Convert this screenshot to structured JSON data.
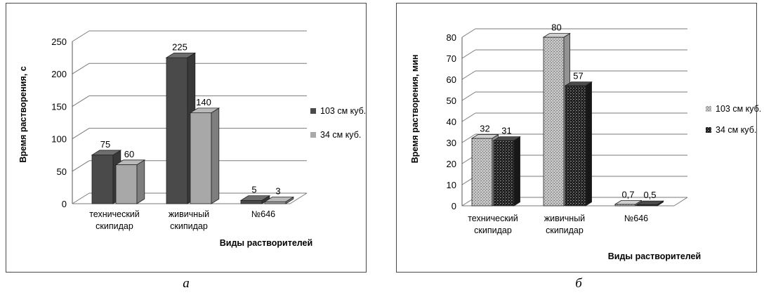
{
  "chart_data": [
    {
      "type": "bar",
      "ylabel": "Время растворения, с",
      "xlabel": "Виды растворителей",
      "ylim": [
        0,
        250
      ],
      "yticks": [
        0,
        50,
        100,
        150,
        200,
        250
      ],
      "ytick_labels": [
        "0",
        "50",
        "100",
        "150",
        "200",
        "250"
      ],
      "categories": [
        [
          "технический",
          "скипидар"
        ],
        [
          "живичный",
          "скипидар"
        ],
        [
          "№646"
        ]
      ],
      "series": [
        {
          "name": "103 см куб.",
          "values": [
            75,
            225,
            5
          ],
          "labels": [
            "75",
            "225",
            "5"
          ],
          "color": "#4a4a4a",
          "pattern": "solid"
        },
        {
          "name": "34 см куб.",
          "values": [
            60,
            140,
            3
          ],
          "labels": [
            "60",
            "140",
            "3"
          ],
          "color": "#a8a8a8",
          "pattern": "solid"
        }
      ],
      "grid": true,
      "legend": "right",
      "view3d": true
    },
    {
      "type": "bar",
      "ylabel": "Время растворения, мин",
      "xlabel": "Виды растворителей",
      "ylim": [
        0,
        80
      ],
      "yticks": [
        0,
        10,
        20,
        30,
        40,
        50,
        60,
        70,
        80
      ],
      "ytick_labels": [
        "0",
        "10",
        "20",
        "30",
        "40",
        "50",
        "60",
        "70",
        "80"
      ],
      "categories": [
        [
          "технический",
          "скипидар"
        ],
        [
          "живичный",
          "скипидар"
        ],
        [
          "№646"
        ]
      ],
      "series": [
        {
          "name": "103 см куб.",
          "values": [
            32,
            80,
            0.7
          ],
          "labels": [
            "32",
            "80",
            "0,7"
          ],
          "color": "#c4c4c4",
          "pattern": "speckle-light"
        },
        {
          "name": "34 см куб.",
          "values": [
            31,
            57,
            0.5
          ],
          "labels": [
            "31",
            "57",
            "0,5"
          ],
          "color": "#1e1e1e",
          "pattern": "speckle-dark"
        }
      ],
      "grid": true,
      "legend": "right",
      "view3d": true
    }
  ],
  "captions": [
    "а",
    "б"
  ]
}
